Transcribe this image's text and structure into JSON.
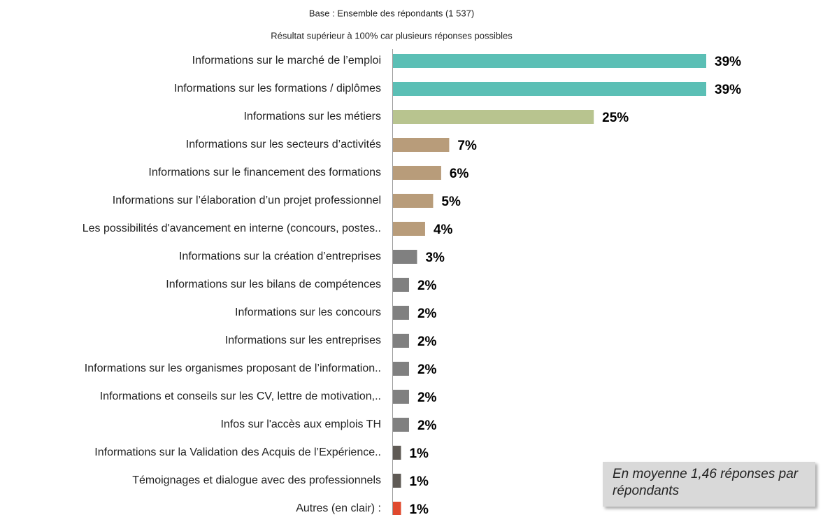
{
  "chart_data": {
    "type": "hbar",
    "subtitle": [
      "Base : Ensemble des répondants (1 537)",
      "Résultat supérieur à 100% car plusieurs réponses possibles"
    ],
    "annotation": "En moyenne 1,46 réponses par répondants",
    "categories": [
      "Informations sur le marché de l’emploi",
      "Informations sur les formations / diplômes",
      "Informations sur les métiers",
      "Informations sur les secteurs d’activités",
      "Informations sur le financement des formations",
      "Informations sur l’élaboration d’un projet professionnel",
      "Les possibilités d'avancement en interne  (concours, postes..",
      "Informations sur la création d’entreprises",
      "Informations sur les bilans de compétences",
      "Informations sur les concours",
      "Informations sur les entreprises",
      "Informations sur les organismes proposant de l’information..",
      "Informations et conseils sur les CV, lettre de motivation,..",
      "Infos sur l'accès aux emplois TH",
      "Informations sur la Validation des Acquis de l’Expérience..",
      "Témoignages et dialogue avec des professionnels",
      "Autres (en clair) :"
    ],
    "values": [
      39,
      39,
      25,
      7,
      6,
      5,
      4,
      3,
      2,
      2,
      2,
      2,
      2,
      2,
      1,
      1,
      1
    ],
    "value_labels": [
      "39%",
      "39%",
      "25%",
      "7%",
      "6%",
      "5%",
      "4%",
      "3%",
      "2%",
      "2%",
      "2%",
      "2%",
      "2%",
      "2%",
      "1%",
      "1%",
      "1%"
    ],
    "colors": [
      "#5bbfb5",
      "#5bbfb5",
      "#b8c48f",
      "#b89c7a",
      "#b89c7a",
      "#b89c7a",
      "#b89c7a",
      "#808080",
      "#808080",
      "#808080",
      "#808080",
      "#808080",
      "#808080",
      "#808080",
      "#5f5a55",
      "#5f5a55",
      "#e0492e"
    ]
  }
}
